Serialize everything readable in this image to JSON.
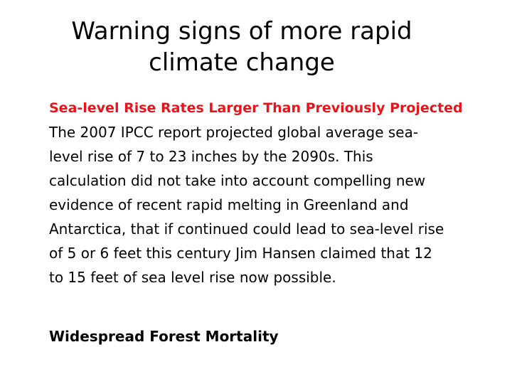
{
  "slide": {
    "title_lines": [
      "Warning signs of more rapid",
      "climate change"
    ],
    "sections": [
      {
        "heading": "Sea-level Rise Rates Larger Than Previously Projected",
        "heading_color": "#e8141c",
        "body_lines": [
          "The 2007 IPCC report projected global average sea-",
          "level rise of 7 to 23 inches by the 2090s.  This",
          "calculation did not take into account compelling new",
          "evidence of recent rapid melting in Greenland and",
          "Antarctica, that if continued could lead to sea-level rise",
          "of 5 or 6 feet this century Jim Hansen claimed that 12",
          "to 15 feet of sea level rise now possible."
        ]
      },
      {
        "heading": "Widespread Forest Mortality"
      }
    ]
  }
}
